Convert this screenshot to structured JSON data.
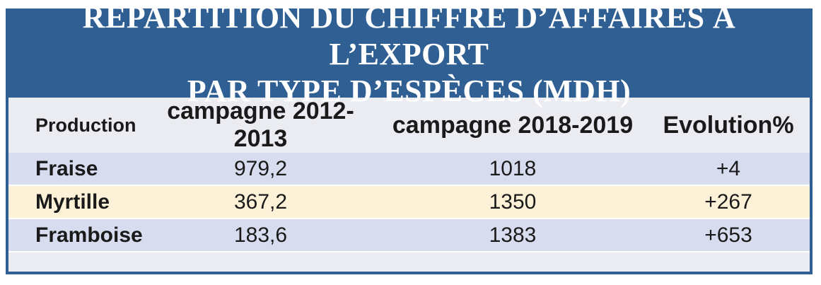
{
  "title": {
    "line1": "RÉPARTITION DU CHIFFRE D’AFFAIRES À L’EXPORT",
    "line2": "PAR TYPE D’ESPÈCES (MDH)"
  },
  "colors": {
    "header_bg": "#2f5f93",
    "row_blue": "#d7dcee",
    "row_cream": "#fdf2d8",
    "panel_bg": "#ebecf2"
  },
  "chart_data": {
    "type": "table",
    "title": "RÉPARTITION DU CHIFFRE D’AFFAIRES À L’EXPORT PAR TYPE D’ESPÈCES (MDH)",
    "columns": [
      "Production",
      "campagne 2012-2013",
      "campagne 2018-2019",
      "Evolution%"
    ],
    "rows": [
      [
        "Fraise",
        "979,2",
        "1018",
        "+4"
      ],
      [
        "Myrtille",
        "367,2",
        "1350",
        "+267"
      ],
      [
        "Framboise",
        "183,6",
        "1383",
        "+653"
      ]
    ]
  }
}
